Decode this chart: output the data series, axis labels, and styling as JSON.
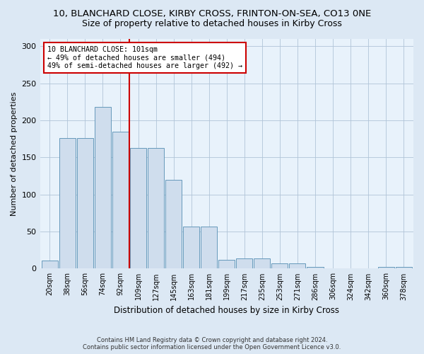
{
  "title": "10, BLANCHARD CLOSE, KIRBY CROSS, FRINTON-ON-SEA, CO13 0NE",
  "subtitle": "Size of property relative to detached houses in Kirby Cross",
  "xlabel": "Distribution of detached houses by size in Kirby Cross",
  "ylabel": "Number of detached properties",
  "bar_labels": [
    "20sqm",
    "38sqm",
    "56sqm",
    "74sqm",
    "92sqm",
    "109sqm",
    "127sqm",
    "145sqm",
    "163sqm",
    "181sqm",
    "199sqm",
    "217sqm",
    "235sqm",
    "253sqm",
    "271sqm",
    "286sqm",
    "306sqm",
    "324sqm",
    "342sqm",
    "360sqm",
    "378sqm"
  ],
  "bar_values": [
    11,
    176,
    176,
    218,
    185,
    163,
    163,
    120,
    57,
    57,
    12,
    14,
    14,
    7,
    7,
    2,
    0,
    0,
    0,
    2,
    2
  ],
  "bar_color": "#cfdded",
  "bar_edge_color": "#6699bb",
  "vline_color": "#cc0000",
  "annotation_line1": "10 BLANCHARD CLOSE: 101sqm",
  "annotation_line2": "← 49% of detached houses are smaller (494)",
  "annotation_line3": "49% of semi-detached houses are larger (492) →",
  "annot_box_color": "#ffffff",
  "annot_box_edge": "#cc0000",
  "ylim": [
    0,
    310
  ],
  "yticks": [
    0,
    50,
    100,
    150,
    200,
    250,
    300
  ],
  "footer1": "Contains HM Land Registry data © Crown copyright and database right 2024.",
  "footer2": "Contains public sector information licensed under the Open Government Licence v3.0.",
  "bg_color": "#dce8f4",
  "plot_bg_color": "#e8f2fb",
  "title_fontsize": 9.5,
  "subtitle_fontsize": 9
}
